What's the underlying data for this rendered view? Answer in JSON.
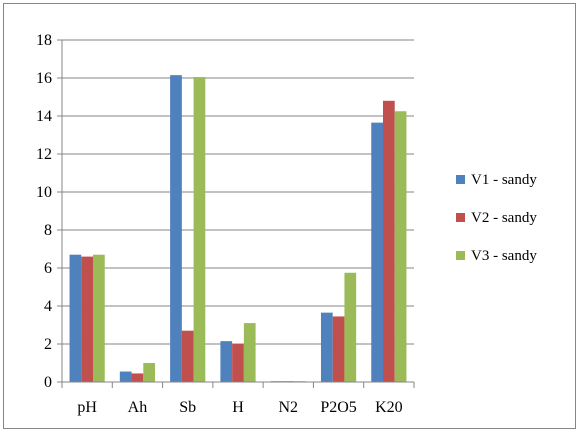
{
  "chart_data": {
    "type": "bar",
    "title": "",
    "xlabel": "",
    "ylabel": "",
    "categories": [
      "pH",
      "Ah",
      "Sb",
      "H",
      "N2",
      "P2O5",
      "K20"
    ],
    "ylim": [
      0,
      18
    ],
    "yticks": [
      0,
      2,
      4,
      6,
      8,
      10,
      12,
      14,
      16,
      18
    ],
    "ytick_labels": [
      "0",
      "2",
      "4",
      "6",
      "8",
      "10",
      "12",
      "14",
      "16",
      "18"
    ],
    "grid": "horizontal major gridlines",
    "legend_position": "right",
    "series": [
      {
        "name": "V1 - sandy",
        "color": "#4F81BD",
        "values": [
          6.7,
          0.55,
          16.15,
          2.15,
          0.03,
          3.65,
          13.65
        ]
      },
      {
        "name": "V2 - sandy",
        "color": "#C0504D",
        "values": [
          6.6,
          0.45,
          2.7,
          2.0,
          0.03,
          3.45,
          14.8
        ]
      },
      {
        "name": "V3 - sandy",
        "color": "#9BBB59",
        "values": [
          6.7,
          1.0,
          16.05,
          3.1,
          0.03,
          5.75,
          14.25
        ]
      }
    ]
  }
}
